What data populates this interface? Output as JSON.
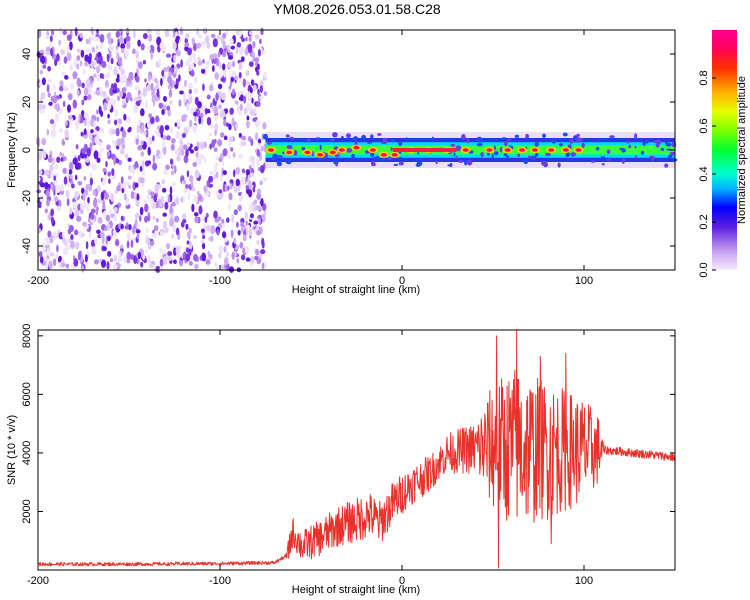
{
  "chart_data": [
    {
      "type": "heatmap",
      "title": "YM08.2026.053.01.58.C28",
      "xlabel": "Height of straight line (km)",
      "ylabel": "Frequency (Hz)",
      "xlim": [
        -200,
        150
      ],
      "ylim": [
        -50,
        50
      ],
      "xticks": [
        -200,
        -100,
        0,
        100
      ],
      "yticks": [
        -40,
        -20,
        0,
        20,
        40
      ],
      "noise_region_x": [
        -200,
        -75
      ],
      "signal_region_x": [
        -75,
        150
      ],
      "signal_center_hz": 0,
      "signal_halfwidth_hz": 5,
      "ridge_peaks": [
        {
          "x": -72,
          "y": 0
        },
        {
          "x": -62,
          "y": -1
        },
        {
          "x": -52,
          "y": -1
        },
        {
          "x": -45,
          "y": -2
        },
        {
          "x": -38,
          "y": -1
        },
        {
          "x": -33,
          "y": 0
        },
        {
          "x": -25,
          "y": 1
        },
        {
          "x": -16,
          "y": 0
        },
        {
          "x": -10,
          "y": -2
        },
        {
          "x": -4,
          "y": -2
        },
        {
          "x": 5,
          "y": 0
        },
        {
          "x": 15,
          "y": 0
        },
        {
          "x": 25,
          "y": 0
        },
        {
          "x": 35,
          "y": 0
        },
        {
          "x": 48,
          "y": 0
        },
        {
          "x": 58,
          "y": 0
        },
        {
          "x": 66,
          "y": 0
        },
        {
          "x": 73,
          "y": 0
        },
        {
          "x": 82,
          "y": 0
        },
        {
          "x": 90,
          "y": 0
        },
        {
          "x": 97,
          "y": 0
        }
      ],
      "colorbar": {
        "label": "Normalized spectral amplitude",
        "range": [
          0,
          1
        ],
        "ticks": [
          "0.0",
          "0.2",
          "0.4",
          "0.6",
          "0.8"
        ]
      }
    },
    {
      "type": "line",
      "xlabel": "Height of straight line (km)",
      "ylabel": "SNR (10 * v/v)",
      "xlim": [
        -200,
        150
      ],
      "ylim": [
        0,
        8200
      ],
      "xticks": [
        -200,
        -100,
        0,
        100
      ],
      "yticks": [
        2000,
        4000,
        6000,
        8000
      ],
      "series": [
        {
          "name": "SNR",
          "color": "#e8312b",
          "anchors": [
            {
              "x": -200,
              "y": 200
            },
            {
              "x": -150,
              "y": 200
            },
            {
              "x": -100,
              "y": 220
            },
            {
              "x": -70,
              "y": 250
            },
            {
              "x": -63,
              "y": 500
            },
            {
              "x": -60,
              "y": 1300
            },
            {
              "x": -55,
              "y": 800
            },
            {
              "x": -45,
              "y": 1100
            },
            {
              "x": -35,
              "y": 1500
            },
            {
              "x": -25,
              "y": 1700
            },
            {
              "x": -18,
              "y": 1900
            },
            {
              "x": -12,
              "y": 1600
            },
            {
              "x": -5,
              "y": 2300
            },
            {
              "x": 5,
              "y": 2900
            },
            {
              "x": 15,
              "y": 3300
            },
            {
              "x": 25,
              "y": 4000
            },
            {
              "x": 35,
              "y": 4100
            },
            {
              "x": 45,
              "y": 4200
            },
            {
              "x": 55,
              "y": 4200
            },
            {
              "x": 65,
              "y": 4200
            },
            {
              "x": 75,
              "y": 4100
            },
            {
              "x": 85,
              "y": 4100
            },
            {
              "x": 95,
              "y": 4100
            },
            {
              "x": 105,
              "y": 4100
            },
            {
              "x": 110,
              "y": 4100
            },
            {
              "x": 120,
              "y": 4050
            },
            {
              "x": 135,
              "y": 3950
            },
            {
              "x": 150,
              "y": 3850
            }
          ],
          "noise_amplitude": [
            {
              "x": -200,
              "y": 60
            },
            {
              "x": -64,
              "y": 60
            },
            {
              "x": -62,
              "y": 500
            },
            {
              "x": -20,
              "y": 800
            },
            {
              "x": 20,
              "y": 600
            },
            {
              "x": 40,
              "y": 900
            },
            {
              "x": 50,
              "y": 2200
            },
            {
              "x": 62,
              "y": 2800
            },
            {
              "x": 80,
              "y": 2400
            },
            {
              "x": 100,
              "y": 1800
            },
            {
              "x": 108,
              "y": 1200
            },
            {
              "x": 111,
              "y": 150
            },
            {
              "x": 150,
              "y": 150
            }
          ],
          "spikes": [
            {
              "x": 52,
              "y": 8000
            },
            {
              "x": 63,
              "y": 8200
            },
            {
              "x": 53,
              "y": 70
            },
            {
              "x": 76,
              "y": 7300
            },
            {
              "x": 90,
              "y": 7400
            },
            {
              "x": 82,
              "y": 900
            }
          ]
        }
      ]
    }
  ]
}
